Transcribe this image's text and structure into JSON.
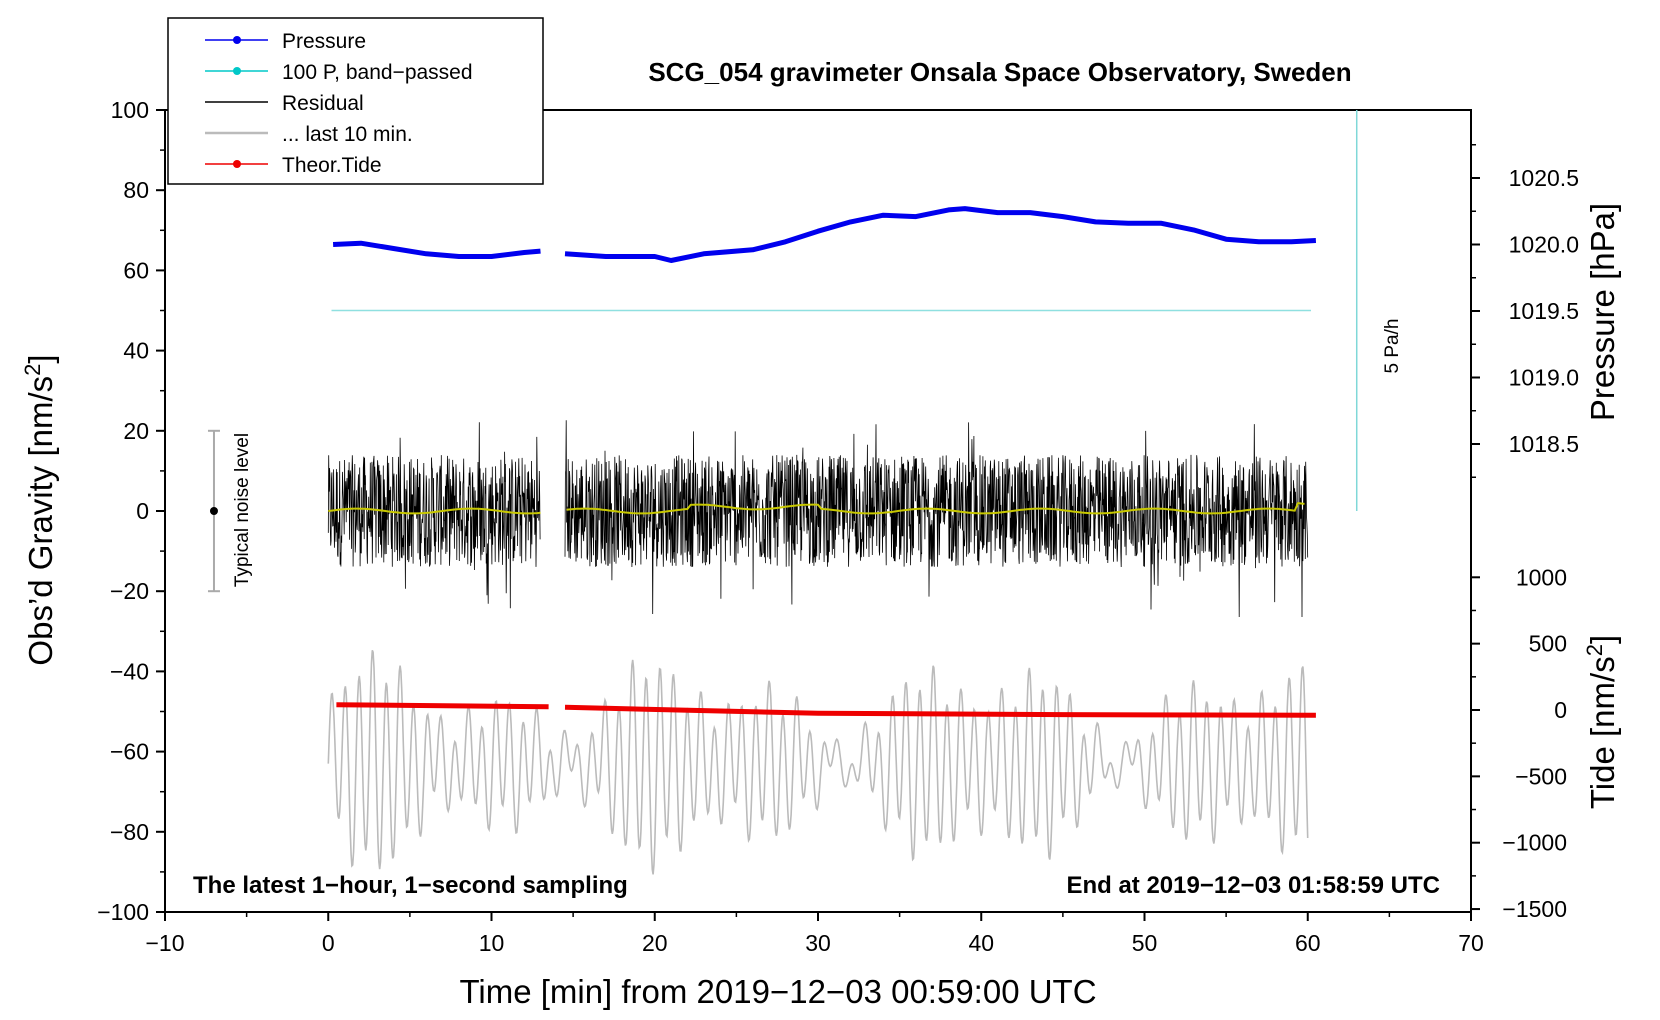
{
  "chart_data": {
    "type": "line",
    "title": "SCG_054 gravimeter Onsala Space Observatory, Sweden",
    "xlabel": "Time [min] from 2019−12−03 00:59:00 UTC",
    "ylabel_left": "Obs’d Gravity [nm/s",
    "ylabel_left_sup": "2",
    "ylabel_left_close": "]",
    "ylabel_right_pressure": "Pressure [hPa]",
    "ylabel_right_tide": "Tide [nm/s",
    "ylabel_right_tide_sup": "2",
    "ylabel_right_tide_close": "]",
    "xlim": [
      -10,
      70
    ],
    "ylim": [
      -100,
      100
    ],
    "x_ticks": [
      "−10",
      "0",
      "10",
      "20",
      "30",
      "40",
      "50",
      "60",
      "70"
    ],
    "y_ticks": [
      "−100",
      "−80",
      "−60",
      "−40",
      "−20",
      "0",
      "20",
      "40",
      "60",
      "80",
      "100"
    ],
    "pressure_ticks": [
      "1020.5",
      "1020.0",
      "1019.5",
      "1019.0",
      "1018.5"
    ],
    "tide_ticks": [
      "1000",
      "500",
      "0",
      "−500",
      "−1000",
      "−1500"
    ],
    "annotation_left": "The latest 1−hour, 1−second sampling",
    "annotation_right": "End at 2019−12−03 01:58:59 UTC",
    "noise_label": "Typical noise level",
    "rate_label": "5 Pa/h",
    "gap_minutes": [
      13.0,
      14.5
    ],
    "legend": [
      {
        "name": "Pressure",
        "color": "#0000ee",
        "marker": true
      },
      {
        "name": "100 P, band−passed",
        "color": "#00c8c8",
        "marker": true
      },
      {
        "name": "Residual",
        "color": "#000000",
        "marker": false
      },
      {
        "name": "... last 10 min.",
        "color": "#bbbbbb",
        "marker": false
      },
      {
        "name": "Theor.Tide",
        "color": "#ee0000",
        "marker": true
      }
    ],
    "series": [
      {
        "name": "Pressure",
        "unit": "hPa",
        "x": [
          0.3,
          2,
          4,
          6,
          8,
          10,
          12,
          13,
          14.5,
          17,
          20,
          21,
          23,
          26,
          28,
          30,
          32,
          34,
          36,
          38,
          39,
          41,
          43,
          45,
          47,
          49,
          51,
          53,
          55,
          57,
          59,
          60.5
        ],
        "values": [
          1020.0,
          1020.01,
          1019.97,
          1019.93,
          1019.91,
          1019.91,
          1019.94,
          1019.95,
          1019.93,
          1019.91,
          1019.91,
          1019.88,
          1019.93,
          1019.96,
          1020.02,
          1020.1,
          1020.17,
          1020.22,
          1020.21,
          1020.26,
          1020.27,
          1020.24,
          1020.24,
          1020.21,
          1020.17,
          1020.16,
          1020.16,
          1020.11,
          1020.04,
          1020.02,
          1020.02,
          1020.03
        ]
      },
      {
        "name": "100 P, band−passed",
        "x": [
          0.2,
          60.2
        ],
        "values": [
          50,
          50
        ]
      },
      {
        "name": "Residual",
        "x_range": [
          0,
          60
        ],
        "amplitude": 14,
        "mean_line_color": "#c8c800"
      },
      {
        "name": "... last 10 min.",
        "x_range": [
          0,
          60
        ],
        "center": -63,
        "amplitude": 14
      },
      {
        "name": "Theor.Tide",
        "unit": "nm/s2",
        "x": [
          0.5,
          13.5,
          14.5,
          30,
          45,
          60.5
        ],
        "values": [
          40,
          25,
          20,
          -25,
          -35,
          -40
        ]
      }
    ],
    "rate_marker": {
      "x": 63,
      "y_from": 0,
      "y_to": 100
    },
    "noise_bar": {
      "x": -7,
      "y_from": -20,
      "y_to": 20
    }
  }
}
